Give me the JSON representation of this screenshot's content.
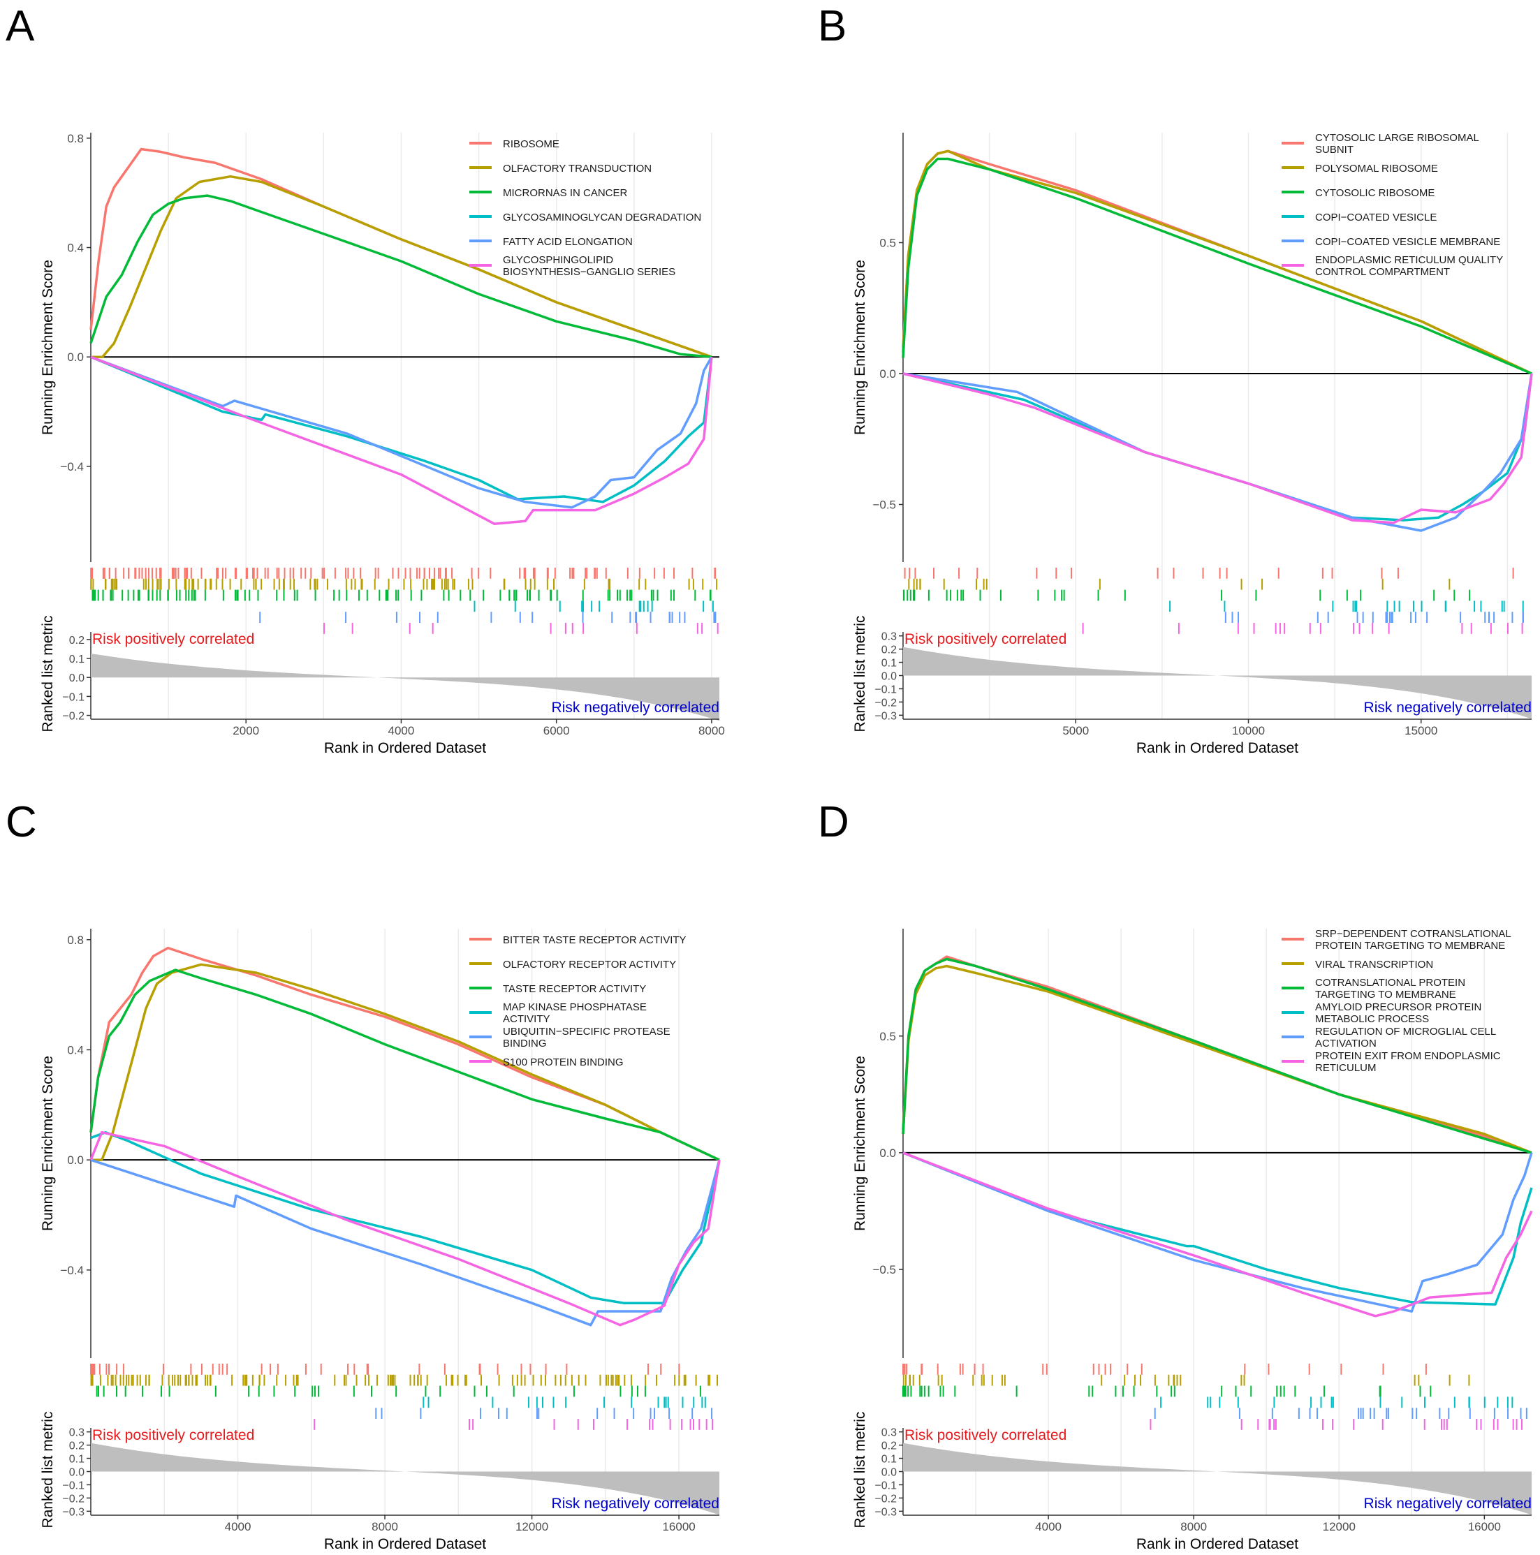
{
  "colors": [
    "#F8766D",
    "#B79F00",
    "#00BA38",
    "#00BFC4",
    "#619CFF",
    "#F564E3"
  ],
  "chart_data": [
    {
      "panel": "A",
      "type": "line",
      "xmax": 8100,
      "es_ylim": [
        -0.75,
        0.82
      ],
      "es_ticks": [
        0.8,
        0.4,
        0.0,
        -0.4
      ],
      "es_tick_labels": [
        "0.8",
        "0.4",
        "0.0",
        "−0.4"
      ],
      "rank_ylim": [
        -0.22,
        0.24
      ],
      "rank_ticks": [
        0.2,
        0.1,
        0.0,
        -0.1,
        -0.2
      ],
      "rank_tick_labels": [
        "0.2",
        "0.1",
        "0.0",
        "−0.1",
        "−0.2"
      ],
      "xticks": [
        2000,
        4000,
        6000,
        8000
      ],
      "xtick_labels": [
        "2000",
        "4000",
        "6000",
        "8000"
      ],
      "xlabel": "Rank in Ordered Dataset",
      "ylabel": "Running Enrichment Score",
      "ylabel2": "Ranked list metric",
      "pos_label": "Risk positively correlated",
      "neg_label": "Risk negatively correlated",
      "series": [
        {
          "name": [
            "RIBOSOME"
          ],
          "x": [
            0,
            100,
            200,
            300,
            400,
            500,
            650,
            900,
            1200,
            1600,
            2200,
            3000,
            4000,
            5000,
            6000,
            7000,
            8000
          ],
          "y": [
            0.1,
            0.35,
            0.55,
            0.62,
            0.66,
            0.7,
            0.76,
            0.75,
            0.73,
            0.71,
            0.65,
            0.55,
            0.43,
            0.32,
            0.2,
            0.1,
            0
          ]
        },
        {
          "name": [
            "OLFACTORY TRANSDUCTION"
          ],
          "x": [
            0,
            150,
            300,
            500,
            700,
            900,
            1100,
            1400,
            1800,
            2200,
            3000,
            4000,
            5000,
            6000,
            7000,
            8000
          ],
          "y": [
            0,
            0,
            0.05,
            0.18,
            0.32,
            0.46,
            0.58,
            0.64,
            0.66,
            0.64,
            0.55,
            0.43,
            0.32,
            0.2,
            0.1,
            0
          ]
        },
        {
          "name": [
            "MICRORNAS IN CANCER"
          ],
          "x": [
            0,
            200,
            400,
            600,
            800,
            1000,
            1200,
            1500,
            1800,
            2200,
            3000,
            4000,
            5000,
            6000,
            7000,
            7600,
            8000
          ],
          "y": [
            0.05,
            0.22,
            0.3,
            0.42,
            0.52,
            0.56,
            0.58,
            0.59,
            0.57,
            0.53,
            0.45,
            0.35,
            0.23,
            0.13,
            0.06,
            0.01,
            0
          ]
        },
        {
          "name": [
            "GLYCOSAMINOGLYCAN DEGRADATION"
          ],
          "x": [
            0,
            1700,
            2200,
            2250,
            3300,
            4300,
            5000,
            5500,
            6100,
            6600,
            7000,
            7400,
            7700,
            7900,
            8000
          ],
          "y": [
            0,
            -0.2,
            -0.23,
            -0.21,
            -0.29,
            -0.38,
            -0.45,
            -0.52,
            -0.51,
            -0.53,
            -0.47,
            -0.38,
            -0.29,
            -0.24,
            0
          ]
        },
        {
          "name": [
            "FATTY ACID ELONGATION"
          ],
          "x": [
            0,
            1700,
            1850,
            3300,
            5000,
            5600,
            6200,
            6500,
            6700,
            7000,
            7300,
            7600,
            7800,
            7900,
            8000
          ],
          "y": [
            0,
            -0.18,
            -0.16,
            -0.28,
            -0.48,
            -0.53,
            -0.55,
            -0.51,
            -0.45,
            -0.44,
            -0.34,
            -0.28,
            -0.17,
            -0.05,
            0
          ]
        },
        {
          "name": [
            "GLYCOSPHINGOLIPID",
            "BIOSYNTHESIS−GANGLIO SERIES"
          ],
          "x": [
            0,
            2000,
            4000,
            5200,
            5600,
            5700,
            6500,
            7000,
            7400,
            7700,
            7900,
            8000
          ],
          "y": [
            0,
            -0.22,
            -0.43,
            -0.61,
            -0.6,
            -0.56,
            -0.56,
            -0.5,
            -0.44,
            -0.39,
            -0.3,
            0
          ]
        }
      ]
    },
    {
      "panel": "B",
      "type": "line",
      "xmax": 18200,
      "es_ylim": [
        -0.72,
        0.92
      ],
      "es_ticks": [
        0.5,
        0.0,
        -0.5
      ],
      "es_tick_labels": [
        "0.5",
        "0.0",
        "−0.5"
      ],
      "rank_ylim": [
        -0.33,
        0.33
      ],
      "rank_ticks": [
        0.3,
        0.2,
        0.1,
        0.0,
        -0.1,
        -0.2,
        -0.3
      ],
      "rank_tick_labels": [
        "0.3",
        "0.2",
        "0.1",
        "0.0",
        "−0.1",
        "−0.2",
        "−0.3"
      ],
      "xticks": [
        5000,
        10000,
        15000
      ],
      "xtick_labels": [
        "5000",
        "10000",
        "15000"
      ],
      "xlabel": "Rank in Ordered Dataset",
      "ylabel": "Running Enrichment Score",
      "ylabel2": "Ranked list metric",
      "pos_label": "Risk positively correlated",
      "neg_label": "Risk negatively correlated",
      "series": [
        {
          "name": [
            "CYTOSOLIC LARGE RIBOSOMAL",
            "SUBNIT"
          ],
          "x": [
            0,
            150,
            400,
            700,
            1000,
            1300,
            2500,
            5000,
            10000,
            15000,
            18200
          ],
          "y": [
            0.1,
            0.45,
            0.7,
            0.8,
            0.84,
            0.85,
            0.8,
            0.7,
            0.45,
            0.2,
            0
          ]
        },
        {
          "name": [
            "POLYSOMAL RIBOSOME"
          ],
          "x": [
            0,
            150,
            400,
            700,
            1000,
            1300,
            2500,
            5000,
            10000,
            15000,
            18200
          ],
          "y": [
            0.08,
            0.45,
            0.7,
            0.8,
            0.84,
            0.85,
            0.78,
            0.69,
            0.45,
            0.2,
            0
          ]
        },
        {
          "name": [
            "CYTOSOLIC RIBOSOME"
          ],
          "x": [
            0,
            150,
            400,
            700,
            1000,
            1300,
            2500,
            5000,
            10000,
            15000,
            18200
          ],
          "y": [
            0.06,
            0.4,
            0.68,
            0.78,
            0.82,
            0.82,
            0.78,
            0.67,
            0.42,
            0.18,
            0
          ]
        },
        {
          "name": [
            "COPI−COATED VESICLE"
          ],
          "x": [
            0,
            3500,
            7000,
            10000,
            13000,
            14500,
            15500,
            16200,
            16800,
            17500,
            18000,
            18200
          ],
          "y": [
            0,
            -0.1,
            -0.3,
            -0.42,
            -0.55,
            -0.56,
            -0.55,
            -0.5,
            -0.45,
            -0.38,
            -0.22,
            0
          ]
        },
        {
          "name": [
            "COPI−COATED VESICLE MEMBRANE"
          ],
          "x": [
            0,
            3300,
            3800,
            7000,
            10000,
            13000,
            15000,
            16000,
            16800,
            17300,
            17900,
            18200
          ],
          "y": [
            0,
            -0.07,
            -0.1,
            -0.3,
            -0.42,
            -0.55,
            -0.6,
            -0.55,
            -0.45,
            -0.38,
            -0.25,
            0
          ]
        },
        {
          "name": [
            "ENDOPLASMIC RETICULUM QUALITY",
            "CONTROL COMPARTMENT"
          ],
          "x": [
            0,
            2500,
            3800,
            7000,
            10000,
            13000,
            14200,
            15000,
            16000,
            17000,
            17400,
            17900,
            18200
          ],
          "y": [
            0,
            -0.08,
            -0.13,
            -0.3,
            -0.42,
            -0.56,
            -0.57,
            -0.52,
            -0.53,
            -0.48,
            -0.42,
            -0.32,
            0
          ]
        }
      ]
    },
    {
      "panel": "C",
      "type": "line",
      "xmax": 17100,
      "es_ylim": [
        -0.72,
        0.84
      ],
      "es_ticks": [
        0.8,
        0.4,
        0.0,
        -0.4
      ],
      "es_tick_labels": [
        "0.8",
        "0.4",
        "0.0",
        "−0.4"
      ],
      "rank_ylim": [
        -0.33,
        0.33
      ],
      "rank_ticks": [
        0.3,
        0.2,
        0.1,
        0.0,
        -0.1,
        -0.2,
        -0.3
      ],
      "rank_tick_labels": [
        "0.3",
        "0.2",
        "0.1",
        "0.0",
        "−0.1",
        "−0.2",
        "−0.3"
      ],
      "xticks": [
        4000,
        8000,
        12000,
        16000
      ],
      "xtick_labels": [
        "4000",
        "8000",
        "12000",
        "16000"
      ],
      "xlabel": "Rank in Ordered Dataset",
      "ylabel": "Running Enrichment Score",
      "ylabel2": "Ranked list metric",
      "pos_label": "Risk positively correlated",
      "neg_label": "Risk negatively correlated",
      "series": [
        {
          "name": [
            "BITTER TASTE RECEPTOR ACTIVITY"
          ],
          "x": [
            0,
            200,
            500,
            800,
            1100,
            1400,
            1700,
            2100,
            3000,
            4500,
            6000,
            8000,
            10000,
            12000,
            14000,
            15500,
            17100
          ],
          "y": [
            0.1,
            0.3,
            0.5,
            0.55,
            0.6,
            0.68,
            0.74,
            0.77,
            0.73,
            0.67,
            0.6,
            0.52,
            0.42,
            0.3,
            0.2,
            0.1,
            0
          ]
        },
        {
          "name": [
            "OLFACTORY RECEPTOR ACTIVITY"
          ],
          "x": [
            0,
            300,
            600,
            900,
            1200,
            1500,
            1800,
            2200,
            3000,
            4500,
            6000,
            8000,
            10000,
            12000,
            14000,
            15500,
            17100
          ],
          "y": [
            0,
            0,
            0.1,
            0.25,
            0.4,
            0.55,
            0.64,
            0.68,
            0.71,
            0.68,
            0.62,
            0.53,
            0.43,
            0.31,
            0.2,
            0.1,
            0
          ]
        },
        {
          "name": [
            "TASTE RECEPTOR ACTIVITY"
          ],
          "x": [
            0,
            200,
            500,
            800,
            1200,
            1600,
            2300,
            3000,
            4500,
            6000,
            8000,
            10000,
            12000,
            14000,
            15500,
            17100
          ],
          "y": [
            0.1,
            0.3,
            0.45,
            0.5,
            0.6,
            0.65,
            0.69,
            0.66,
            0.6,
            0.53,
            0.42,
            0.32,
            0.22,
            0.15,
            0.1,
            0
          ]
        },
        {
          "name": [
            "MAP KINASE PHOSPHATASE",
            "ACTIVITY"
          ],
          "x": [
            0,
            400,
            1000,
            3000,
            6000,
            9000,
            12000,
            13600,
            14500,
            15600,
            16100,
            16600,
            17100
          ],
          "y": [
            0.08,
            0.1,
            0.07,
            -0.05,
            -0.18,
            -0.28,
            -0.4,
            -0.5,
            -0.52,
            -0.52,
            -0.4,
            -0.3,
            0
          ]
        },
        {
          "name": [
            "UBIQUITIN−SPECIFIC PROTEASE",
            "BINDING"
          ],
          "x": [
            0,
            3900,
            3950,
            6000,
            9000,
            12000,
            13600,
            13800,
            15500,
            15800,
            16200,
            16600,
            17100
          ],
          "y": [
            0,
            -0.17,
            -0.13,
            -0.25,
            -0.38,
            -0.52,
            -0.6,
            -0.55,
            -0.55,
            -0.43,
            -0.33,
            -0.25,
            0
          ]
        },
        {
          "name": [
            "S100 PROTEIN BINDING"
          ],
          "x": [
            0,
            300,
            2000,
            4000,
            7000,
            10000,
            13000,
            14400,
            14800,
            15600,
            16000,
            16400,
            16800,
            17100
          ],
          "y": [
            0,
            0.1,
            0.05,
            -0.06,
            -0.22,
            -0.36,
            -0.52,
            -0.6,
            -0.58,
            -0.53,
            -0.38,
            -0.3,
            -0.25,
            0
          ]
        }
      ]
    },
    {
      "panel": "D",
      "type": "line",
      "xmax": 17300,
      "es_ylim": [
        -0.88,
        0.96
      ],
      "es_ticks": [
        0.5,
        0.0,
        -0.5
      ],
      "es_tick_labels": [
        "0.5",
        "0.0",
        "−0.5"
      ],
      "rank_ylim": [
        -0.33,
        0.33
      ],
      "rank_ticks": [
        0.3,
        0.2,
        0.1,
        0.0,
        -0.1,
        -0.2,
        -0.3
      ],
      "rank_tick_labels": [
        "0.3",
        "0.2",
        "0.1",
        "0.0",
        "−0.1",
        "−0.2",
        "−0.3"
      ],
      "xticks": [
        4000,
        8000,
        12000,
        16000
      ],
      "xtick_labels": [
        "4000",
        "8000",
        "12000",
        "16000"
      ],
      "xlabel": "Rank in Ordered Dataset",
      "ylabel": "Running Enrichment Score",
      "ylabel2": "Ranked list metric",
      "pos_label": "Risk positively correlated",
      "neg_label": "Risk negatively correlated",
      "series": [
        {
          "name": [
            "SRP−DEPENDENT COTRANSLATIONAL",
            "PROTEIN TARGETING TO MEMBRANE"
          ],
          "x": [
            0,
            150,
            350,
            600,
            900,
            1200,
            2000,
            4000,
            8000,
            12000,
            16000,
            17300
          ],
          "y": [
            0.1,
            0.5,
            0.7,
            0.78,
            0.81,
            0.84,
            0.8,
            0.71,
            0.48,
            0.25,
            0.07,
            0
          ]
        },
        {
          "name": [
            "VIRAL TRANSCRIPTION"
          ],
          "x": [
            0,
            150,
            350,
            600,
            900,
            1200,
            2000,
            4000,
            8000,
            12000,
            16000,
            17300
          ],
          "y": [
            0.08,
            0.48,
            0.68,
            0.76,
            0.79,
            0.8,
            0.77,
            0.69,
            0.47,
            0.25,
            0.08,
            0
          ]
        },
        {
          "name": [
            "COTRANSLATIONAL PROTEIN",
            "TARGETING TO MEMBRANE"
          ],
          "x": [
            0,
            150,
            350,
            600,
            900,
            1200,
            2000,
            4000,
            8000,
            12000,
            16000,
            17300
          ],
          "y": [
            0.08,
            0.5,
            0.7,
            0.78,
            0.81,
            0.83,
            0.8,
            0.7,
            0.48,
            0.25,
            0.06,
            0
          ]
        },
        {
          "name": [
            "AMYLOID PRECURSOR PROTEIN",
            "METABOLIC PROCESS"
          ],
          "x": [
            0,
            4000,
            7800,
            8000,
            10000,
            12000,
            14000,
            16300,
            16800,
            17000,
            17300
          ],
          "y": [
            0,
            -0.25,
            -0.4,
            -0.4,
            -0.5,
            -0.58,
            -0.64,
            -0.65,
            -0.45,
            -0.3,
            -0.15
          ]
        },
        {
          "name": [
            "REGULATION OF MICROGLIAL CELL",
            "ACTIVATION"
          ],
          "x": [
            0,
            4000,
            8000,
            11000,
            14000,
            14300,
            15000,
            15800,
            16500,
            16800,
            17100,
            17300
          ],
          "y": [
            0,
            -0.25,
            -0.46,
            -0.58,
            -0.68,
            -0.55,
            -0.52,
            -0.48,
            -0.35,
            -0.2,
            -0.1,
            0
          ]
        },
        {
          "name": [
            "PROTEIN EXIT FROM ENDOPLASMIC",
            "RETICULUM"
          ],
          "x": [
            0,
            4000,
            8000,
            11000,
            13000,
            13500,
            14500,
            16200,
            16600,
            17000,
            17300
          ],
          "y": [
            0,
            -0.24,
            -0.44,
            -0.6,
            -0.7,
            -0.68,
            -0.62,
            -0.6,
            -0.45,
            -0.35,
            -0.25
          ]
        }
      ]
    }
  ]
}
